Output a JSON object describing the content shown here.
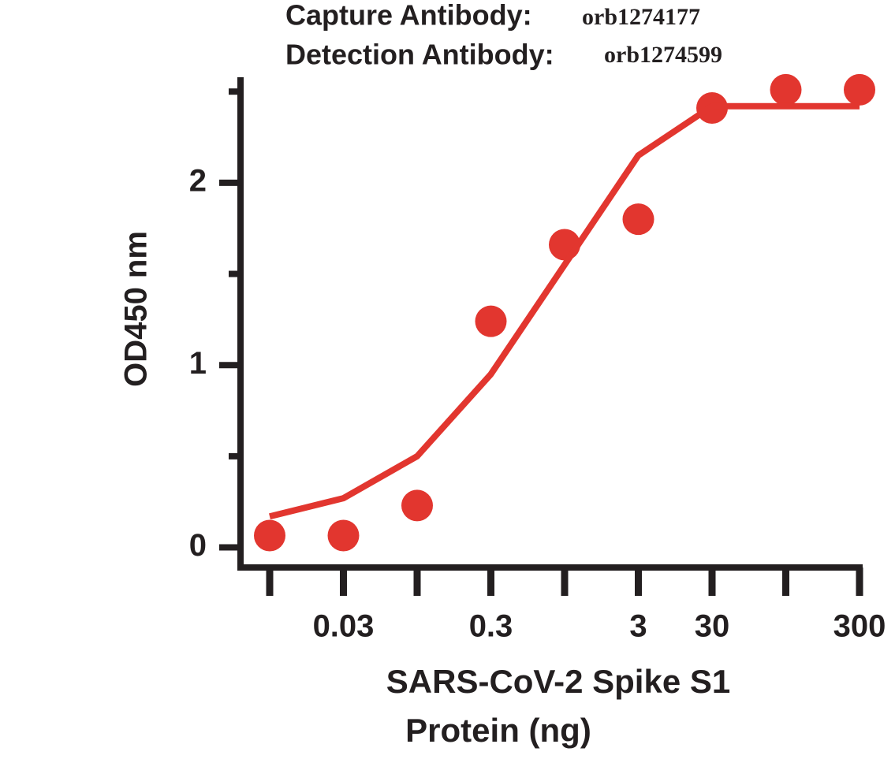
{
  "chart_data": {
    "type": "scatter",
    "capture_label": "Capture Antibody:",
    "capture_id": "orb1274177",
    "detection_label": "Detection Antibody:",
    "detection_id": "orb1274599",
    "ylabel": "OD450 nm",
    "xlabel": [
      "SARS-CoV-2 Spike S1",
      "Protein (ng)"
    ],
    "categories": [
      null,
      "0.03",
      null,
      "0.3",
      null,
      "3",
      "30",
      null,
      "300"
    ],
    "series": [
      {
        "style": "points",
        "color": "#e2362f",
        "values": [
          0.065,
          0.065,
          0.23,
          1.24,
          1.66,
          1.8,
          2.41,
          2.51,
          2.51
        ]
      },
      {
        "style": "curve",
        "color": "#e2362f",
        "values": [
          0.17,
          0.27,
          0.5,
          0.95,
          1.55,
          2.15,
          2.42,
          2.42,
          2.42
        ]
      }
    ],
    "ylim": [
      -0.11,
      2.57
    ],
    "yticks": [
      0,
      1,
      2
    ],
    "minor_yticks": [
      0.5,
      1.5,
      2.5
    ]
  }
}
